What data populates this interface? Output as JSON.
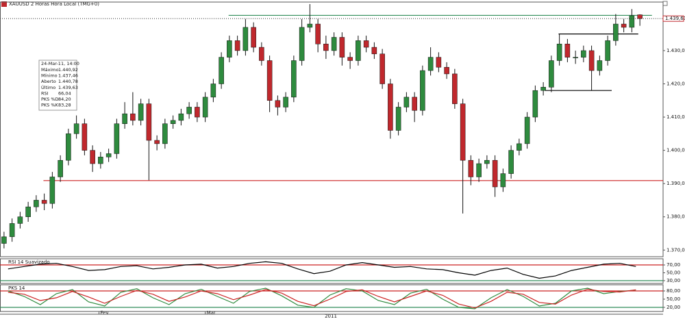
{
  "title": "XAUUSD 2 Horas Hora Local (TMG+0)",
  "info_box": {
    "date": "24-Mar-11, 14:00",
    "rows": [
      {
        "label": "Máximo",
        "value": "1.440,92"
      },
      {
        "label": "Mínimo",
        "value": "1.437,46"
      },
      {
        "label": "Aberto",
        "value": "1.440,78"
      },
      {
        "label": "Último",
        "value": "1.439,63"
      },
      {
        "label": "RSI",
        "value": "66,04"
      },
      {
        "label": "PKS %D",
        "value": "84,20"
      },
      {
        "label": "PKS %K",
        "value": "83,28"
      }
    ]
  },
  "chart_data": [
    {
      "type": "candlestick",
      "up_color": "#2e8b3e",
      "down_color": "#c0282d",
      "wick_color": "#111111",
      "xlim": [
        0,
        80
      ],
      "xticks": [
        {
          "value": 12.3,
          "label": "Fev"
        },
        {
          "value": 25.5,
          "label": "Mar"
        }
      ],
      "xlabel": "2011",
      "ylim": [
        1368,
        1444.4
      ],
      "yticks": [
        {
          "value": 1370,
          "label": "1.370,00"
        },
        {
          "value": 1380,
          "label": "1.380,00"
        },
        {
          "value": 1390,
          "label": "1.390,00"
        },
        {
          "value": 1400,
          "label": "1.400,00"
        },
        {
          "value": 1410,
          "label": "1.410,00"
        },
        {
          "value": 1420,
          "label": "1.420,00"
        },
        {
          "value": 1430,
          "label": "1.430,00"
        }
      ],
      "last_price": {
        "value": 1439.63,
        "label": "1.439,63"
      },
      "hlines": [
        {
          "value": 1440.6,
          "from": 28.4,
          "to": 81,
          "color": "#2e8b57"
        },
        {
          "value": 1390.9,
          "from": 5.4,
          "to": 82.5,
          "color": "#cc2222"
        },
        {
          "value": 1435,
          "from": 69.4,
          "to": 79.3,
          "color": "#000000"
        },
        {
          "value": 1418,
          "from": 67.7,
          "to": 76,
          "color": "#000000"
        }
      ],
      "open": [
        1372,
        1374,
        1378,
        1380,
        1383,
        1385,
        1384,
        1392,
        1397,
        1405,
        1408,
        1400,
        1396,
        1398,
        1399,
        1408,
        1411,
        1409,
        1414,
        1403,
        1402,
        1408,
        1409,
        1411,
        1413,
        1410,
        1416,
        1420,
        1428,
        1433,
        1430,
        1437,
        1431,
        1427,
        1415,
        1413,
        1416,
        1427,
        1437,
        1438,
        1432,
        1430,
        1434,
        1428,
        1427,
        1433,
        1431,
        1429,
        1420,
        1406,
        1413,
        1416,
        1412,
        1424,
        1428,
        1425,
        1423,
        1414,
        1397,
        1392,
        1396,
        1397,
        1389,
        1393,
        1400,
        1402,
        1410,
        1418,
        1419,
        1427,
        1432,
        1428,
        1428,
        1430,
        1424,
        1427,
        1433,
        1438,
        1437,
        1440.78
      ],
      "high": [
        1375.5,
        1379.5,
        1381.5,
        1384.5,
        1386.5,
        1387,
        1393.5,
        1398.5,
        1406.5,
        1410.5,
        1409.5,
        1401.5,
        1399.5,
        1400.5,
        1409.5,
        1414.5,
        1417.5,
        1415.5,
        1415.5,
        1404.5,
        1409.5,
        1410.5,
        1412.5,
        1414.5,
        1414.5,
        1417.5,
        1421.5,
        1429.5,
        1434.5,
        1434.5,
        1439.5,
        1438.5,
        1432.5,
        1428.5,
        1416.5,
        1417.5,
        1428.5,
        1439.5,
        1444,
        1439.5,
        1434.5,
        1435.5,
        1435.5,
        1429.5,
        1434.5,
        1434.5,
        1432.5,
        1430.5,
        1421.5,
        1414.5,
        1417.5,
        1417.5,
        1425.5,
        1431,
        1429.5,
        1426.5,
        1424.5,
        1415.5,
        1398.5,
        1397.5,
        1398.5,
        1398.5,
        1394.5,
        1401.5,
        1403.5,
        1411.5,
        1419.5,
        1420.5,
        1428.5,
        1435,
        1433.5,
        1430,
        1431.5,
        1431.5,
        1428.5,
        1434.5,
        1441,
        1439.5,
        1442.5,
        1440.92
      ],
      "low": [
        1370.5,
        1372.5,
        1376.5,
        1378.5,
        1381.5,
        1382,
        1382.5,
        1390.5,
        1395.5,
        1403.5,
        1398.5,
        1393.5,
        1394.5,
        1396.5,
        1397.5,
        1406.5,
        1407.5,
        1407.5,
        1391,
        1400,
        1400.5,
        1406.5,
        1407.5,
        1409.5,
        1408.5,
        1408.5,
        1414.5,
        1418.5,
        1426.5,
        1428.5,
        1428.5,
        1429.5,
        1425.5,
        1411.5,
        1410.5,
        1411.5,
        1414.5,
        1425.5,
        1435.5,
        1429.5,
        1427.5,
        1428.5,
        1425.5,
        1424.5,
        1425.5,
        1429.5,
        1427.5,
        1418.5,
        1403.5,
        1404.5,
        1411.5,
        1408.5,
        1410.5,
        1422.5,
        1423.5,
        1421.5,
        1412.5,
        1381,
        1389.5,
        1390.5,
        1394.5,
        1386,
        1387.5,
        1391.5,
        1398.5,
        1400.5,
        1408.5,
        1416.5,
        1417.5,
        1425.5,
        1426.5,
        1426,
        1426.5,
        1418,
        1422.5,
        1425.5,
        1431.5,
        1435.5,
        1435.5,
        1437.46
      ],
      "close": [
        1374,
        1378,
        1380,
        1383,
        1385,
        1384,
        1392,
        1397,
        1405,
        1408,
        1400,
        1396,
        1398,
        1399,
        1408,
        1411,
        1409,
        1414,
        1403,
        1402,
        1408,
        1409,
        1411,
        1413,
        1410,
        1416,
        1420,
        1428,
        1433,
        1430,
        1437,
        1431,
        1427,
        1415,
        1413,
        1416,
        1427,
        1437,
        1438,
        1432,
        1430,
        1434,
        1428,
        1427,
        1433,
        1431,
        1429,
        1420,
        1406,
        1413,
        1416,
        1412,
        1424,
        1428,
        1425,
        1423,
        1414,
        1397,
        1392,
        1396,
        1397,
        1389,
        1393,
        1400,
        1402,
        1410,
        1418,
        1419,
        1427,
        1432,
        1428,
        1428,
        1430,
        1424,
        1427,
        1433,
        1438,
        1437,
        1440.5,
        1439.63
      ]
    },
    {
      "type": "line",
      "title": "RSI 14 Suavizado",
      "ylim": [
        23,
        84
      ],
      "yticks": [
        {
          "value": 30,
          "label": "30,00"
        },
        {
          "value": 50,
          "label": "50,00"
        },
        {
          "value": 70,
          "label": "70,00"
        }
      ],
      "hlines": [
        {
          "value": 70,
          "color": "#cc2222"
        },
        {
          "value": 30,
          "color": "#2e8b57"
        }
      ],
      "series": [
        {
          "color": "#000000",
          "values": [
            60,
            66,
            72,
            74,
            66,
            56,
            58,
            66,
            68,
            60,
            64,
            70,
            72,
            62,
            66,
            74,
            78,
            74,
            60,
            48,
            54,
            70,
            76,
            70,
            64,
            66,
            60,
            58,
            50,
            44,
            56,
            62,
            46,
            36,
            42,
            56,
            64,
            72,
            74,
            66
          ]
        }
      ]
    },
    {
      "type": "line",
      "title": "PKS 14",
      "ylim": [
        5,
        100
      ],
      "yticks": [
        {
          "value": 20,
          "label": "20,00"
        },
        {
          "value": 50,
          "label": "50,00"
        },
        {
          "value": 80,
          "label": "80,00"
        }
      ],
      "hlines": [
        {
          "value": 80,
          "color": "#cc2222"
        },
        {
          "value": 20,
          "color": "#2e8b57"
        }
      ],
      "series": [
        {
          "color": "#2e8b3e",
          "values": [
            80,
            60,
            30,
            70,
            85,
            40,
            25,
            75,
            88,
            55,
            30,
            70,
            86,
            60,
            35,
            78,
            90,
            62,
            28,
            20,
            65,
            88,
            80,
            45,
            30,
            72,
            86,
            50,
            20,
            15,
            55,
            85,
            60,
            25,
            35,
            80,
            90,
            70,
            78,
            83.28
          ]
        },
        {
          "color": "#cc2222",
          "values": [
            75,
            68,
            45,
            55,
            78,
            58,
            35,
            60,
            82,
            68,
            42,
            58,
            80,
            70,
            48,
            65,
            85,
            72,
            42,
            26,
            50,
            78,
            84,
            60,
            40,
            60,
            80,
            64,
            32,
            18,
            42,
            75,
            68,
            38,
            32,
            65,
            86,
            78,
            76,
            84.2
          ]
        }
      ]
    }
  ]
}
